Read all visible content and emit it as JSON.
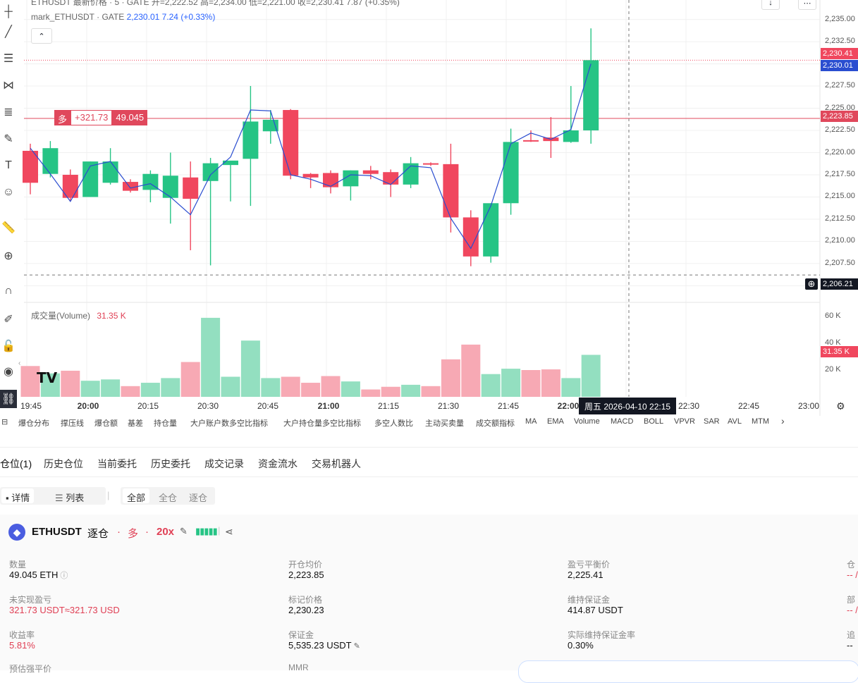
{
  "chart": {
    "legend_row1": "ETHUSDT 最新价格 · 5 · GATE  开=2,222.52 高=2,234.00 低=2,221.00 收=2,230.41 7.87 (+0.35%)",
    "legend_row2_name": "mark_ETHUSDT · GATE",
    "legend_row2_value": "2,230.01  7.24 (+0.33%)",
    "volume_label": "成交量(Volume)",
    "volume_value": "31.35 K",
    "position_tag_side": "多",
    "position_tag_pnl": "+321.73",
    "position_tag_qty": "49.045",
    "price_axis": [
      "2,235.00",
      "2,232.50",
      "2,227.50",
      "2,225.00",
      "2,222.50",
      "2,220.00",
      "2,217.50",
      "2,215.00",
      "2,212.50",
      "2,210.00",
      "2,207.50",
      "2,205.00"
    ],
    "volume_axis": [
      "60 K",
      "40 K",
      "20 K"
    ],
    "price_boxes": {
      "last": "2,230.41",
      "mark": "2,230.01",
      "entry": "2,223.85",
      "cursor": "2,206.21",
      "volume": "31.35 K"
    },
    "time_axis": [
      "19:45",
      "20:00",
      "20:15",
      "20:30",
      "20:45",
      "21:00",
      "21:15",
      "21:30",
      "21:45",
      "22:00",
      "22:30",
      "22:45",
      "23:00"
    ],
    "crosshair_time": "周五 2026-04-10   22:15",
    "colors": {
      "up": "#26c485",
      "down": "#f0475e",
      "mark_line": "#2a4dd0",
      "entry_line": "#e0485c"
    }
  },
  "chart_data": {
    "type": "candlestick",
    "interval": "5",
    "times": [
      "19:50",
      "19:55",
      "20:00",
      "20:05",
      "20:10",
      "20:15",
      "20:20",
      "20:25",
      "20:30",
      "20:35",
      "20:40",
      "20:45",
      "20:50",
      "20:55",
      "21:00",
      "21:05",
      "21:10",
      "21:15",
      "21:20",
      "21:25",
      "21:30",
      "21:35",
      "21:40",
      "21:45",
      "21:50",
      "21:55",
      "22:00",
      "22:05",
      "22:10"
    ],
    "ohlc": [
      [
        2220.2,
        2221.0,
        2215.3,
        2216.6
      ],
      [
        2217.6,
        2221.3,
        2217.2,
        2220.5
      ],
      [
        2217.5,
        2218.1,
        2214.5,
        2214.9
      ],
      [
        2215.0,
        2219.0,
        2215.0,
        2219.0
      ],
      [
        2216.6,
        2220.5,
        2216.4,
        2219.0
      ],
      [
        2216.7,
        2217.0,
        2215.5,
        2215.7
      ],
      [
        2215.8,
        2218.0,
        2214.4,
        2217.6
      ],
      [
        2214.9,
        2220.0,
        2212.0,
        2217.4
      ],
      [
        2217.2,
        2219.0,
        2209.0,
        2214.8
      ],
      [
        2216.8,
        2219.4,
        2207.3,
        2218.8
      ],
      [
        2218.6,
        2219.0,
        2214.5,
        2219.1
      ],
      [
        2219.3,
        2227.5,
        2214.0,
        2223.5
      ],
      [
        2222.4,
        2224.8,
        2221.0,
        2223.7
      ],
      [
        2224.8,
        2224.9,
        2217.0,
        2217.4
      ],
      [
        2217.6,
        2217.7,
        2216.0,
        2217.2
      ],
      [
        2217.7,
        2218.0,
        2215.4,
        2216.1
      ],
      [
        2216.2,
        2218.0,
        2214.6,
        2218.0
      ],
      [
        2218.0,
        2218.5,
        2217.0,
        2217.6
      ],
      [
        2217.8,
        2218.1,
        2215.0,
        2216.4
      ],
      [
        2216.4,
        2219.5,
        2216.0,
        2218.8
      ],
      [
        2218.8,
        2218.9,
        2218.5,
        2218.7
      ],
      [
        2218.7,
        2221.0,
        2211.0,
        2212.7
      ],
      [
        2212.7,
        2213.5,
        2207.2,
        2208.3
      ],
      [
        2208.3,
        2214.3,
        2207.6,
        2214.3
      ],
      [
        2214.3,
        2222.7,
        2213.0,
        2221.2
      ],
      [
        2221.4,
        2222.5,
        2221.2,
        2221.3
      ],
      [
        2221.7,
        2224.0,
        2219.4,
        2221.3
      ],
      [
        2221.2,
        2227.5,
        2221.1,
        2222.5
      ],
      [
        2222.5,
        2234.0,
        2221.0,
        2230.41
      ]
    ],
    "mark_price": [
      2220.5,
      2217.6,
      2214.5,
      2218.5,
      2219.0,
      2216.0,
      2216.5,
      2215.0,
      2213.0,
      2217.5,
      2219.5,
      2224.8,
      2224.7,
      2217.5,
      2217.0,
      2216.2,
      2217.5,
      2217.4,
      2216.4,
      2218.5,
      2218.3,
      2212.6,
      2209.2,
      2214.0,
      2221.0,
      2222.2,
      2221.5,
      2222.6,
      2230.01
    ],
    "volume": [
      23.0,
      17.5,
      19.5,
      12.0,
      13.0,
      8.0,
      10.5,
      14.0,
      26.0,
      59.0,
      15.0,
      42.0,
      14.0,
      15.0,
      10.5,
      15.5,
      11.5,
      5.5,
      7.5,
      9.0,
      8.0,
      28.0,
      39.0,
      17.0,
      21.0,
      20.0,
      20.5,
      14.0,
      31.35
    ],
    "entry_price": 2223.85,
    "cursor_price": 2206.21,
    "price_range": [
      2204.0,
      2236.0
    ],
    "volume_range": [
      0,
      70
    ],
    "grid": true
  },
  "indicators": [
    "爆仓分布",
    "撑压线",
    "爆仓额",
    "基差",
    "持仓量",
    "大户账户数多空比指标",
    "大户持仓量多空比指标",
    "多空人数比",
    "主动买卖量",
    "成交额指标",
    "MA",
    "EMA",
    "Volume",
    "MACD",
    "BOLL",
    "VPVR",
    "SAR",
    "AVL",
    "MTM"
  ],
  "tabs": [
    "仓位(1)",
    "历史仓位",
    "当前委托",
    "历史委托",
    "成交记录",
    "资金流水",
    "交易机器人"
  ],
  "view_toggle": {
    "detail": "详情",
    "list": "列表"
  },
  "margin_filter": [
    "全部",
    "全仓",
    "逐仓"
  ],
  "position": {
    "symbol": "ETHUSDT",
    "mode": "逐仓",
    "side": "多",
    "leverage": "20x",
    "fields": [
      {
        "label": "数量",
        "value": "49.045 ETH"
      },
      {
        "label": "开仓均价",
        "value": "2,223.85"
      },
      {
        "label": "盈亏平衡价",
        "value": "2,225.41"
      },
      {
        "label": "未实现盈亏",
        "value": "321.73 USDT≈321.73 USD"
      },
      {
        "label": "标记价格",
        "value": "2,230.23"
      },
      {
        "label": "维持保证金",
        "value": "414.87 USDT"
      },
      {
        "label": "收益率",
        "value": "5.81%"
      },
      {
        "label": "保证金",
        "value": "5,535.23 USDT"
      },
      {
        "label": "实际维持保证金率",
        "value": "0.30%"
      },
      {
        "label": "预估强平价",
        "value": ""
      },
      {
        "label": "MMR",
        "value": ""
      }
    ],
    "right_col": [
      {
        "label": "仓",
        "value": "-- /"
      },
      {
        "label": "部",
        "value": "-- /"
      },
      {
        "label": "追",
        "value": "--"
      }
    ]
  }
}
